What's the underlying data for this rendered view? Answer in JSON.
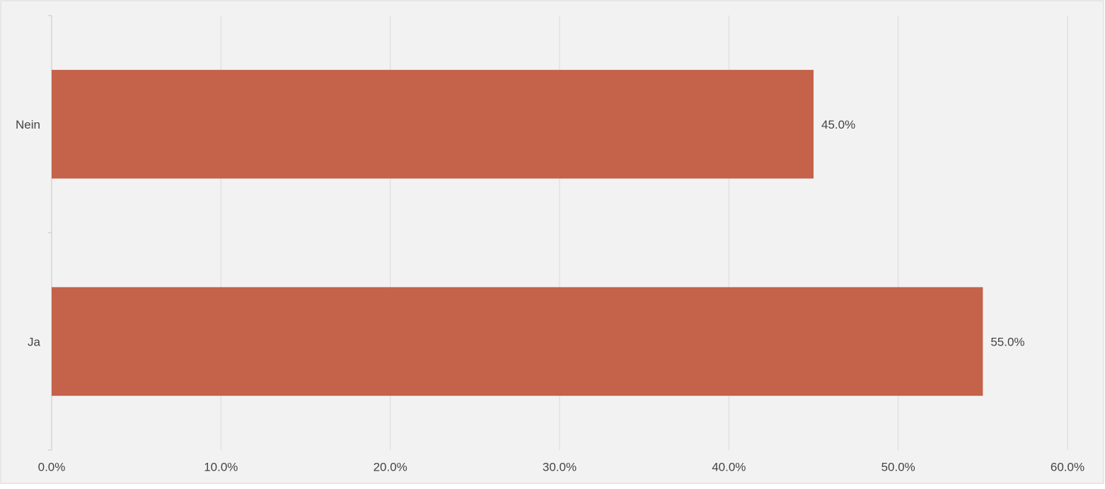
{
  "chart_data": {
    "type": "bar",
    "orientation": "horizontal",
    "categories": [
      "Nein",
      "Ja"
    ],
    "values": [
      45,
      55
    ],
    "value_labels": [
      "45.0%",
      "55.0%"
    ],
    "color": "#c4624a",
    "xlim": [
      0,
      60
    ],
    "xticks": [
      {
        "value": 0,
        "label": "0.0%"
      },
      {
        "value": 10,
        "label": "10.0%"
      },
      {
        "value": 20,
        "label": "20.0%"
      },
      {
        "value": 30,
        "label": "30.0%"
      },
      {
        "value": 40,
        "label": "40.0%"
      },
      {
        "value": 50,
        "label": "50.0%"
      },
      {
        "value": 60,
        "label": "60.0%"
      }
    ],
    "grid": true
  }
}
